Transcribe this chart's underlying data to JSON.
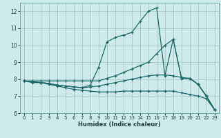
{
  "xlabel": "Humidex (Indice chaleur)",
  "background_color": "#ceeaea",
  "grid_color": "#aacece",
  "line_color": "#1a6868",
  "xlim": [
    -0.5,
    23.5
  ],
  "ylim": [
    6,
    12.5
  ],
  "yticks": [
    6,
    7,
    8,
    9,
    10,
    11,
    12
  ],
  "xticks": [
    0,
    1,
    2,
    3,
    4,
    5,
    6,
    7,
    8,
    9,
    10,
    11,
    12,
    13,
    14,
    15,
    16,
    17,
    18,
    19,
    20,
    21,
    22,
    23
  ],
  "lines": [
    {
      "x": [
        0,
        1,
        2,
        3,
        4,
        5,
        6,
        7,
        8,
        9,
        10,
        11,
        12,
        13,
        14,
        15,
        16,
        17,
        18,
        19,
        20,
        21,
        22,
        23
      ],
      "y": [
        7.9,
        7.8,
        7.8,
        7.7,
        7.6,
        7.5,
        7.4,
        7.35,
        7.3,
        7.25,
        7.25,
        7.25,
        7.3,
        7.3,
        7.3,
        7.3,
        7.3,
        7.3,
        7.3,
        7.2,
        7.1,
        7.0,
        6.85,
        6.2
      ]
    },
    {
      "x": [
        0,
        1,
        2,
        3,
        4,
        5,
        6,
        7,
        8,
        9,
        10,
        11,
        12,
        13,
        14,
        15,
        16,
        17,
        18,
        19,
        20,
        21,
        22,
        23
      ],
      "y": [
        7.9,
        7.85,
        7.8,
        7.75,
        7.65,
        7.6,
        7.55,
        7.5,
        7.55,
        7.6,
        7.7,
        7.8,
        7.9,
        8.0,
        8.1,
        8.2,
        8.25,
        8.25,
        8.2,
        8.1,
        8.05,
        7.7,
        7.0,
        6.2
      ]
    },
    {
      "x": [
        0,
        1,
        2,
        3,
        4,
        5,
        6,
        7,
        8,
        9,
        10,
        11,
        12,
        13,
        14,
        15,
        16,
        17,
        18,
        19,
        20,
        21,
        22,
        23
      ],
      "y": [
        7.9,
        7.9,
        7.9,
        7.9,
        7.9,
        7.9,
        7.9,
        7.9,
        7.9,
        7.9,
        8.05,
        8.2,
        8.4,
        8.6,
        8.8,
        9.0,
        9.5,
        10.0,
        10.35,
        8.05,
        8.05,
        7.7,
        7.0,
        6.2
      ]
    },
    {
      "x": [
        0,
        1,
        2,
        3,
        4,
        5,
        6,
        7,
        8,
        9,
        10,
        11,
        12,
        13,
        14,
        15,
        16,
        17,
        18,
        19,
        20,
        21,
        22,
        23
      ],
      "y": [
        7.9,
        7.85,
        7.8,
        7.75,
        7.65,
        7.6,
        7.55,
        7.5,
        7.65,
        8.7,
        10.2,
        10.45,
        10.6,
        10.75,
        11.4,
        12.0,
        12.2,
        8.2,
        10.35,
        8.05,
        8.05,
        7.7,
        7.0,
        6.2
      ]
    }
  ]
}
